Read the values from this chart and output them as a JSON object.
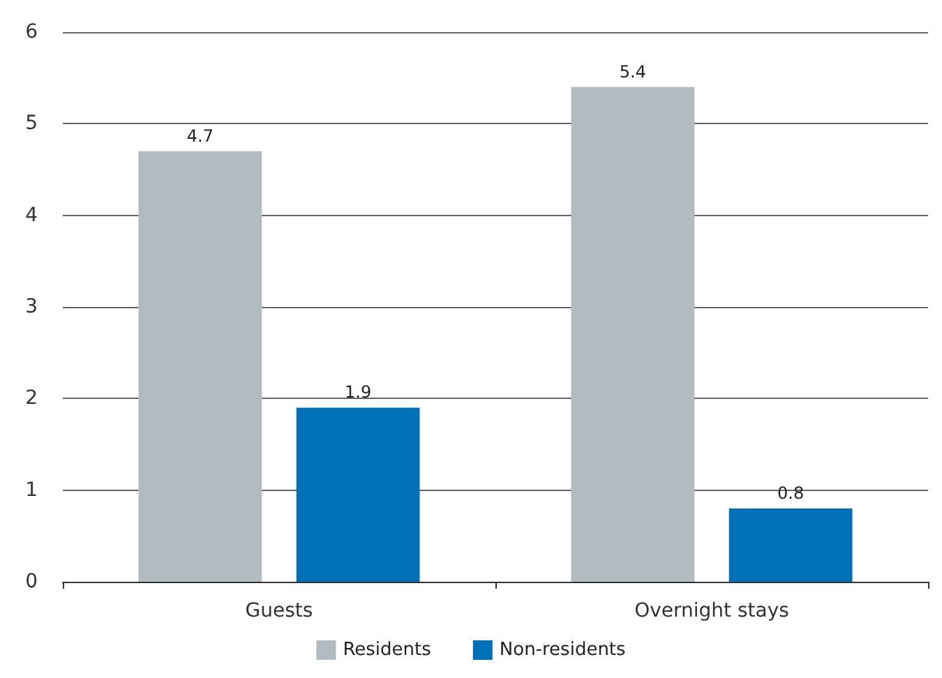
{
  "chart_data": {
    "type": "bar",
    "categories": [
      "Guests",
      "Overnight stays"
    ],
    "series": [
      {
        "name": "Residents",
        "color": "#b2bcc0",
        "values": [
          4.7,
          5.4
        ]
      },
      {
        "name": "Non-residents",
        "color": "#0070b8",
        "values": [
          1.9,
          0.8
        ]
      }
    ],
    "ylim": [
      0,
      6
    ],
    "yticks": [
      0,
      1,
      2,
      3,
      4,
      5,
      6
    ],
    "grid": "y",
    "legend": "bottom",
    "data_labels": true
  }
}
